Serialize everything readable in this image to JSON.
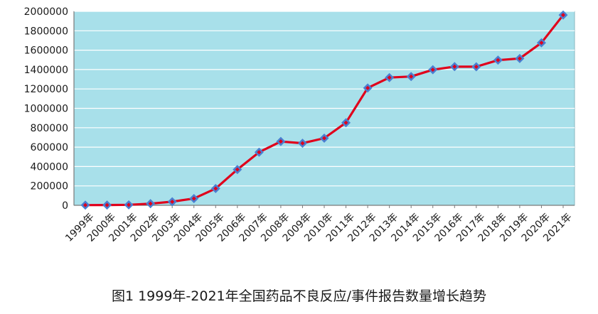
{
  "caption": "图1 1999年-2021年全国药品不良反应/事件报告数量增长趋势",
  "chart_data": {
    "type": "line",
    "title": "",
    "xlabel": "",
    "ylabel": "",
    "categories": [
      "1999年",
      "2000年",
      "2001年",
      "2002年",
      "2003年",
      "2004年",
      "2005年",
      "2006年",
      "2007年",
      "2008年",
      "2009年",
      "2010年",
      "2011年",
      "2012年",
      "2013年",
      "2014年",
      "2015年",
      "2016年",
      "2017年",
      "2018年",
      "2019年",
      "2020年",
      "2021年"
    ],
    "values": [
      2000,
      3000,
      5000,
      17000,
      37000,
      70000,
      173000,
      369000,
      548000,
      658000,
      640000,
      692000,
      852000,
      1210000,
      1317000,
      1328000,
      1398000,
      1430000,
      1429000,
      1497000,
      1514000,
      1676000,
      1962000
    ],
    "ylim": [
      0,
      2000000
    ],
    "yticks": [
      "0",
      "200000",
      "400000",
      "600000",
      "800000",
      "1000000",
      "1200000",
      "1400000",
      "1600000",
      "1800000",
      "2000000"
    ],
    "grid": true,
    "colors": {
      "plot_bg": "#a8e0ea",
      "line": "#e0001b",
      "marker": "#4a7fd1",
      "marker_center": "#e0001b",
      "grid": "#ffffff"
    }
  }
}
